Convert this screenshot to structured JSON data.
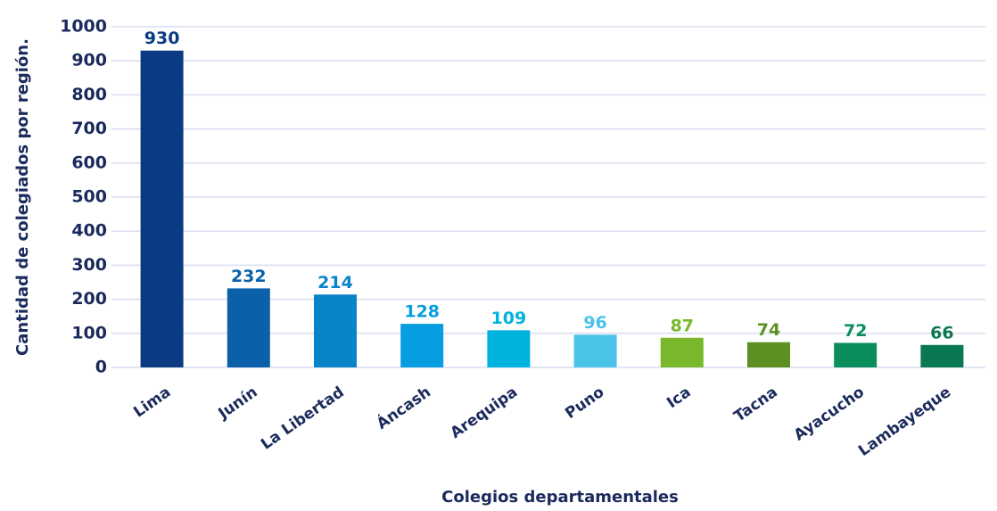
{
  "chart_data": {
    "type": "bar",
    "x_label": "Colegios departamentales",
    "y_label": "Cantidad de colegiados por región.",
    "categories": [
      "Lima",
      "Junín",
      "La Libertad",
      "Áncash",
      "Arequipa",
      "Puno",
      "Ica",
      "Tacna",
      "Ayacucho",
      "Lambayeque"
    ],
    "values": [
      930,
      232,
      214,
      128,
      109,
      96,
      87,
      74,
      72,
      66
    ],
    "colors": [
      "#0a3a82",
      "#0b60aa",
      "#0a84c8",
      "#069ee0",
      "#00b3df",
      "#4bc2e8",
      "#78b82a",
      "#5d8f22",
      "#0a8f5c",
      "#0a7850"
    ],
    "ylim": [
      0,
      1000
    ],
    "yticks": [
      0,
      100,
      200,
      300,
      400,
      500,
      600,
      700,
      800,
      900,
      1000
    ],
    "grid": true
  }
}
